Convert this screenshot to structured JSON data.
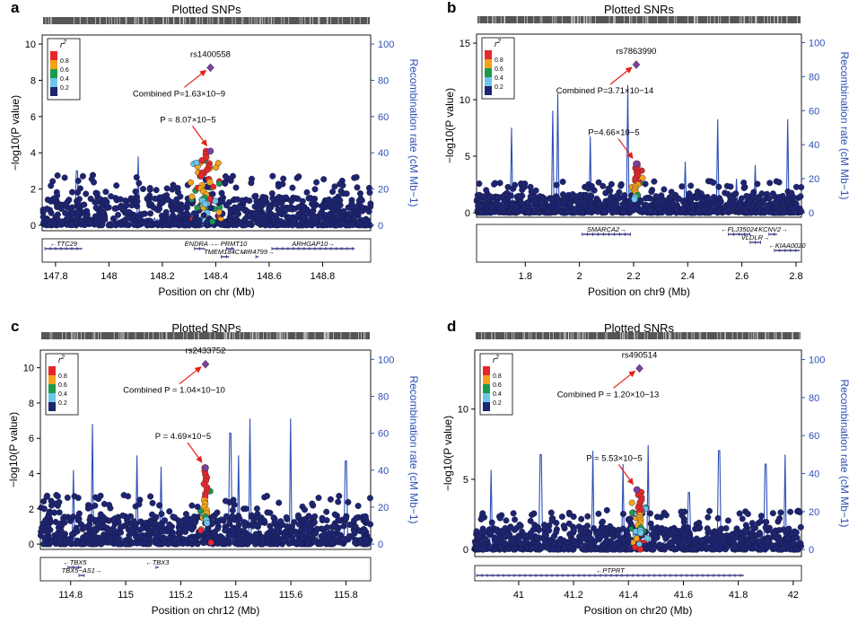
{
  "colors": {
    "recomb": "#2d4fb8",
    "background_point": "#1d2470",
    "lead": "#7b3fa0",
    "arrow": "#e32018",
    "r2_bins": [
      "#e8262a",
      "#f5a21b",
      "#1a9a4a",
      "#6cc6e8",
      "#1d2470"
    ]
  },
  "common": {
    "y_label_left": "−log10(P value)",
    "y_label_right": "Recombination rate (cM Mb−1)",
    "legend_title": "r2",
    "legend_ticks": [
      "0.8",
      "0.6",
      "0.4",
      "0.2"
    ],
    "y_right_ticks": [
      "0",
      "20",
      "40",
      "60",
      "80",
      "100"
    ]
  },
  "chart_data": [
    {
      "id": "a",
      "type": "scatter",
      "panel_label": "a",
      "title": "Plotted SNPs",
      "xlabel": "Position on chr (Mb)",
      "xlim": [
        147.75,
        148.98
      ],
      "ylim": [
        -0.3,
        10.5
      ],
      "x_ticks": [
        "147.8",
        "148",
        "148.2",
        "148.4",
        "148.6",
        "148.8"
      ],
      "y_ticks": [
        "0",
        "2",
        "4",
        "6",
        "8",
        "10"
      ],
      "lead_snp": {
        "name": "rs1400558",
        "x": 148.38,
        "y": 8.7,
        "combined_label": "Combined P=1.63×10−9"
      },
      "replication": {
        "label": "P = 8.07×10−5",
        "x": 148.38,
        "y": 4.09
      },
      "peak_x": 148.36,
      "peak_halfwidth": 0.06,
      "recomb_peaks": [
        {
          "x": 147.88,
          "rate": 30
        },
        {
          "x": 148.11,
          "rate": 38
        },
        {
          "x": 148.56,
          "rate": 12
        },
        {
          "x": 148.93,
          "rate": 10
        }
      ],
      "genes": [
        {
          "name": "←TTC29",
          "start": 147.76,
          "end": 147.9,
          "row": 0
        },
        {
          "name": "ENDRA→",
          "start": 148.32,
          "end": 148.36,
          "row": 0
        },
        {
          "name": "←PRMT10",
          "start": 148.44,
          "end": 148.47,
          "row": 0
        },
        {
          "name": "ARHGAP10→",
          "start": 148.61,
          "end": 148.92,
          "row": 0
        },
        {
          "name": "TMEM184C→",
          "start": 148.42,
          "end": 148.45,
          "row": 1
        },
        {
          "name": "MIR4799→",
          "start": 148.55,
          "end": 148.56,
          "row": 1
        }
      ]
    },
    {
      "id": "b",
      "type": "scatter",
      "panel_label": "b",
      "title": "Plotted SNRs",
      "xlabel": "Position on chr9 (Mb)",
      "xlim": [
        1.62,
        2.82
      ],
      "ylim": [
        -0.4,
        15.8
      ],
      "x_ticks": [
        "1.8",
        "2",
        "2.2",
        "2.4",
        "2.6",
        "2.8"
      ],
      "y_ticks": [
        "0",
        "5",
        "10",
        "15"
      ],
      "lead_snp": {
        "name": "rs7863990",
        "x": 2.21,
        "y": 13.1,
        "combined_label": "Combined P=3.71×10−14"
      },
      "replication": {
        "label": "P=4.66×10−5",
        "x": 2.21,
        "y": 4.33
      },
      "peak_x": 2.21,
      "peak_halfwidth": 0.025,
      "recomb_peaks": [
        {
          "x": 1.75,
          "rate": 50
        },
        {
          "x": 1.9,
          "rate": 60
        },
        {
          "x": 1.92,
          "rate": 70
        },
        {
          "x": 2.04,
          "rate": 45
        },
        {
          "x": 2.18,
          "rate": 75
        },
        {
          "x": 2.39,
          "rate": 30
        },
        {
          "x": 2.51,
          "rate": 55
        },
        {
          "x": 2.58,
          "rate": 20
        },
        {
          "x": 2.65,
          "rate": 28
        },
        {
          "x": 2.77,
          "rate": 55
        }
      ],
      "genes": [
        {
          "name": "SMARCA2→",
          "start": 2.01,
          "end": 2.19,
          "row": 0
        },
        {
          "name": "←FLJ35024",
          "start": 2.55,
          "end": 2.63,
          "row": 0
        },
        {
          "name": "KCNV2→",
          "start": 2.7,
          "end": 2.73,
          "row": 0
        },
        {
          "name": "VLDLR→",
          "start": 2.63,
          "end": 2.67,
          "row": 1
        },
        {
          "name": "←KIAA0020",
          "start": 2.72,
          "end": 2.82,
          "row": 2
        }
      ]
    },
    {
      "id": "c",
      "type": "scatter",
      "panel_label": "c",
      "title": "Plotted SNPs",
      "xlabel": "Position on chr12 (Mb)",
      "xlim": [
        114.69,
        115.89
      ],
      "ylim": [
        -0.3,
        11.0
      ],
      "x_ticks": [
        "114.8",
        "115",
        "115.2",
        "115.4",
        "115.6",
        "115.8"
      ],
      "y_ticks": [
        "0",
        "2",
        "4",
        "6",
        "8",
        "10"
      ],
      "lead_snp": {
        "name": "rs2433752",
        "x": 115.29,
        "y": 10.2,
        "combined_label": "Combined P = 1.04×10−10"
      },
      "replication": {
        "label": "P = 4.69×10−5",
        "x": 115.29,
        "y": 4.33
      },
      "peak_x": 115.29,
      "peak_halfwidth": 0.02,
      "recomb_peaks": [
        {
          "x": 114.81,
          "rate": 40
        },
        {
          "x": 114.88,
          "rate": 65
        },
        {
          "x": 115.04,
          "rate": 48
        },
        {
          "x": 115.13,
          "rate": 42
        },
        {
          "x": 115.38,
          "rate": 60
        },
        {
          "x": 115.41,
          "rate": 48
        },
        {
          "x": 115.45,
          "rate": 68
        },
        {
          "x": 115.6,
          "rate": 68
        },
        {
          "x": 115.8,
          "rate": 45
        }
      ],
      "genes": [
        {
          "name": "←TBX5",
          "start": 114.79,
          "end": 114.84,
          "row": 0
        },
        {
          "name": "←TBX3",
          "start": 115.11,
          "end": 115.12,
          "row": 0
        },
        {
          "name": "TBX5−AS1→",
          "start": 114.83,
          "end": 114.85,
          "row": 1
        }
      ]
    },
    {
      "id": "d",
      "type": "scatter",
      "panel_label": "d",
      "title": "Plotted SNRs",
      "xlabel": "Position on chr20 (Mb)",
      "xlim": [
        40.84,
        42.03
      ],
      "ylim": [
        -0.5,
        14.2
      ],
      "x_ticks": [
        "41",
        "41.2",
        "41.4",
        "41.6",
        "41.8",
        "42"
      ],
      "y_ticks": [
        "0",
        "5",
        "10"
      ],
      "lead_snp": {
        "name": "rs490514",
        "x": 41.44,
        "y": 12.9,
        "combined_label": "Combined P = 1.20×10−13"
      },
      "replication": {
        "label": "P = 5.53×10−5",
        "x": 41.43,
        "y": 4.26
      },
      "peak_x": 41.44,
      "peak_halfwidth": 0.03,
      "recomb_peaks": [
        {
          "x": 40.9,
          "rate": 42
        },
        {
          "x": 41.08,
          "rate": 50
        },
        {
          "x": 41.27,
          "rate": 52
        },
        {
          "x": 41.38,
          "rate": 45
        },
        {
          "x": 41.47,
          "rate": 55
        },
        {
          "x": 41.62,
          "rate": 30
        },
        {
          "x": 41.73,
          "rate": 52
        },
        {
          "x": 41.9,
          "rate": 45
        },
        {
          "x": 41.97,
          "rate": 50
        }
      ],
      "genes": [
        {
          "name": "←PTPRT",
          "start": 40.84,
          "end": 41.82,
          "row": 0
        }
      ]
    }
  ]
}
